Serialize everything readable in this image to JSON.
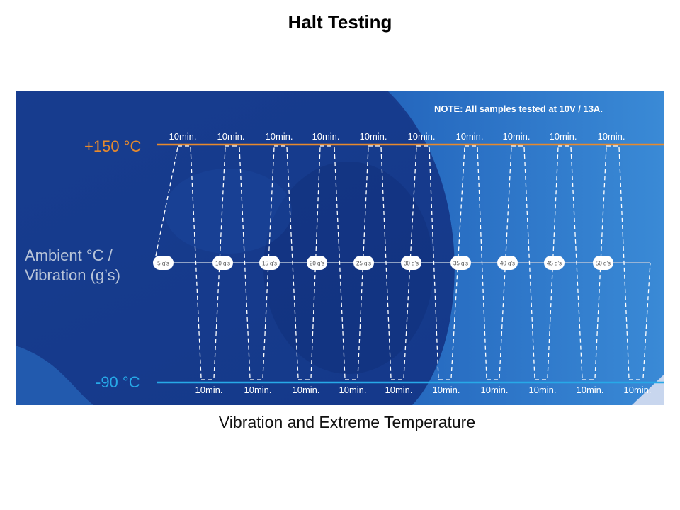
{
  "slide": {
    "title": "Halt Testing",
    "caption": "Vibration and Extreme Temperature"
  },
  "diagram": {
    "note": "NOTE: All samples tested at 10V / 13A.",
    "high_label": "+150 °C",
    "ambient_label_line1": "Ambient °C /",
    "ambient_label_line2": "Vibration (g’s)",
    "low_label": "-90 °C",
    "dwell_label": "10min.",
    "vibration_levels": [
      "5 g's",
      "10 g's",
      "15 g's",
      "20 g's",
      "25 g's",
      "30 g's",
      "35 g's",
      "40 g's",
      "45 g's",
      "50 g's"
    ],
    "colors": {
      "high_line": "#e88a2c",
      "low_line": "#27a9e8",
      "ambient_line": "#b8c4d8",
      "bg_dark": "#173f95",
      "bg_light": "#2f7fcf"
    }
  }
}
